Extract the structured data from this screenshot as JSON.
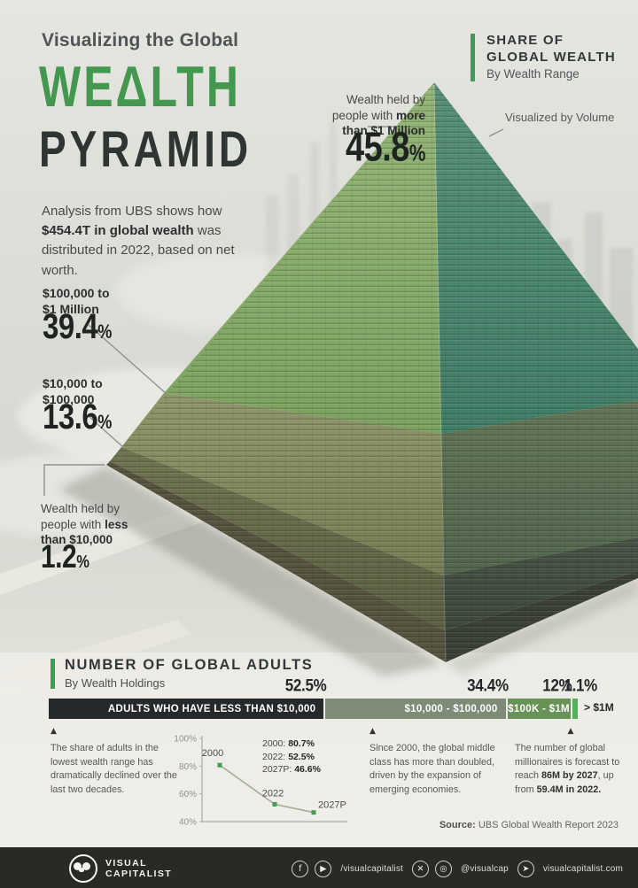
{
  "header": {
    "kicker": "Visualizing the Global",
    "title_line1": "WEΔLTH",
    "title_line2": "PYRAMID",
    "intro_pre": "Analysis from UBS shows how ",
    "intro_bold": "$454.4T in global wealth",
    "intro_post": " was distributed in 2022, based on net worth."
  },
  "share_header": {
    "title_line1": "SHARE OF",
    "title_line2": "GLOBAL WEALTH",
    "subtitle": "By Wealth Range",
    "accent_color": "#3c9e53"
  },
  "volume_note": "Visualized by Volume",
  "pyramid_labels": {
    "millionaires": {
      "line1": "Wealth held by",
      "line2_pre": "people with ",
      "line2_bold": "more",
      "line3_bold": "than $1 Million",
      "value": "45.8",
      "unit": "%"
    },
    "tier_100k_1m": {
      "line1_bold": "$100,000 to",
      "line2_bold": "$1 Million",
      "value": "39.4",
      "unit": "%"
    },
    "tier_10k_100k": {
      "line1_bold": "$10,000 to",
      "line2_bold": "$100,000",
      "value": "13.6",
      "unit": "%"
    },
    "under_10k": {
      "line1": "Wealth held by",
      "line2_pre": "people with ",
      "line2_bold": "less",
      "line3_bold": "than $10,000",
      "value": "1.2",
      "unit": "%"
    }
  },
  "adults_section": {
    "title": "NUMBER OF GLOBAL ADULTS",
    "subtitle": "By Wealth Holdings",
    "accent_color": "#3c9e53",
    "bar_segments": [
      {
        "label": "ADULTS WHO HAVE LESS THAN $10,000",
        "pct": "52.5%",
        "value": 52.5,
        "color": "#26292b",
        "label_inside": true,
        "align": "right"
      },
      {
        "label": "$10,000 - $100,000",
        "pct": "34.4%",
        "value": 34.4,
        "color": "#7e8b77",
        "label_inside": true,
        "align": "right"
      },
      {
        "label": "$100K - $1M",
        "pct": "12%",
        "value": 12,
        "color": "#699257",
        "label_inside": true,
        "align": "center"
      },
      {
        "label": "> $1M",
        "pct": "1.1%",
        "value": 1.1,
        "color": "#4fb357",
        "label_inside": false
      }
    ],
    "note1": "The share of adults in the lowest wealth range has dramatically declined over the last two decades.",
    "note2": "Since 2000, the global middle class has more than doubled, driven by the expansion of emerging economies.",
    "note3": {
      "pre": "The number of global millionaires is forecast to reach ",
      "bold1": "86M by 2027",
      "mid": ", up from ",
      "bold2": "59.4M in 2022.",
      "post": ""
    },
    "chart_legend": [
      {
        "label": "2000: ",
        "value": "80.7%"
      },
      {
        "label": "2022: ",
        "value": "52.5%"
      },
      {
        "label": "2027P: ",
        "value": "46.6%"
      }
    ],
    "source_label": "Source:",
    "source_text": " UBS Global Wealth Report 2023"
  },
  "footer": {
    "logo_line1": "VISUAL",
    "logo_line2": "CAPITALIST",
    "social": [
      {
        "icon": "facebook-icon",
        "glyph": "f"
      },
      {
        "icon": "youtube-icon",
        "glyph": "▶"
      },
      {
        "name": "footer-social-handle",
        "text": "/visualcapitalist"
      },
      {
        "icon": "x-twitter-icon",
        "glyph": "✕"
      },
      {
        "icon": "instagram-icon",
        "glyph": "◎"
      },
      {
        "name": "footer-instagram-handle",
        "text": "@visualcap"
      },
      {
        "icon": "cursor-icon",
        "glyph": "➤"
      },
      {
        "name": "footer-website",
        "text": "visualcapitalist.com"
      }
    ]
  },
  "chart_data": [
    {
      "type": "bar",
      "title": "Share of Global Wealth",
      "subtitle": "By Wealth Range",
      "unit": "%",
      "categories": [
        "More than $1 Million",
        "$100,000 to $1 Million",
        "$10,000 to $100,000",
        "Less than $10,000"
      ],
      "values": [
        45.8,
        39.4,
        13.6,
        1.2
      ],
      "total_wealth": "$454.4T",
      "year": "2022",
      "note": "Visualized by Volume as a 3D pyramid"
    },
    {
      "type": "bar",
      "title": "Number of Global Adults",
      "subtitle": "By Wealth Holdings",
      "unit": "%",
      "categories": [
        "Adults who have less than $10,000",
        "$10,000 - $100,000",
        "$100K - $1M",
        "> $1M"
      ],
      "values": [
        52.5,
        34.4,
        12,
        1.1
      ]
    },
    {
      "type": "line",
      "title": "Adults in lowest wealth range",
      "x": [
        "2000",
        "2022",
        "2027P"
      ],
      "values": [
        80.7,
        52.5,
        46.6
      ],
      "ylim": [
        40,
        100
      ],
      "yticks": [
        "100%",
        "80%",
        "60%",
        "40%"
      ],
      "grid": false,
      "legend_position": "top-right"
    }
  ]
}
